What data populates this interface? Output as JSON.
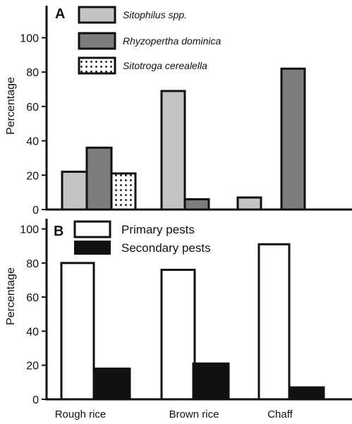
{
  "categories": [
    "Rough rice",
    "Brown rice",
    "Chaff"
  ],
  "colors": {
    "sitophilus": "#c4c4c4",
    "rhyzopertha": "#7c7c7c",
    "sitotroga": "#ffffff",
    "primary": "#ffffff",
    "secondary": "#111111",
    "axis": "#111111"
  },
  "chart_data": [
    {
      "type": "bar",
      "panel": "A",
      "ylabel": "Percentage",
      "ylim": [
        0,
        110
      ],
      "yticks": [
        "0",
        "20",
        "40",
        "60",
        "80",
        "100"
      ],
      "categories": [
        "Rough rice",
        "Brown rice",
        "Chaff"
      ],
      "legend_position": "top-left",
      "series": [
        {
          "name": "Sitophilus spp.",
          "values": [
            22,
            69,
            7
          ]
        },
        {
          "name": "Rhyzopertha dominica",
          "values": [
            36,
            6,
            82
          ]
        },
        {
          "name": "Sitotroga cerealella",
          "values": [
            21,
            null,
            null
          ]
        }
      ]
    },
    {
      "type": "bar",
      "panel": "B",
      "ylabel": "Percentage",
      "ylim": [
        0,
        100
      ],
      "yticks": [
        "0",
        "20",
        "40",
        "60",
        "80",
        "100"
      ],
      "categories": [
        "Rough rice",
        "Brown rice",
        "Chaff"
      ],
      "legend_position": "top-left",
      "series": [
        {
          "name": "Primary pests",
          "values": [
            80,
            76,
            91
          ]
        },
        {
          "name": "Secondary pests",
          "values": [
            18,
            21,
            7
          ]
        }
      ]
    }
  ]
}
